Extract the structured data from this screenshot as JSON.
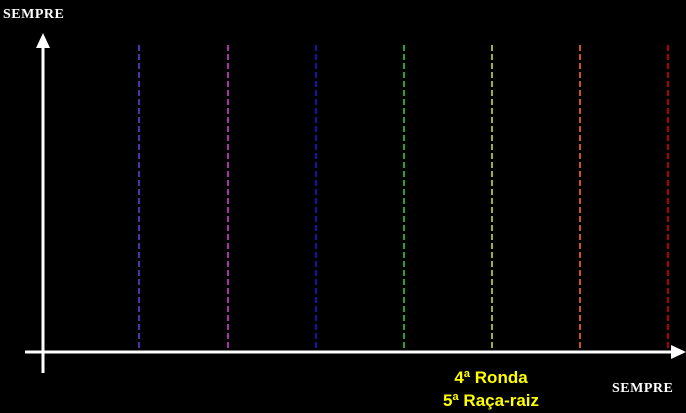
{
  "axes": {
    "y_label": "SEMPRE",
    "x_label": "SEMPRE"
  },
  "caption": {
    "line1": "4ª Ronda",
    "line2": "5ª Raça-raiz"
  }
}
